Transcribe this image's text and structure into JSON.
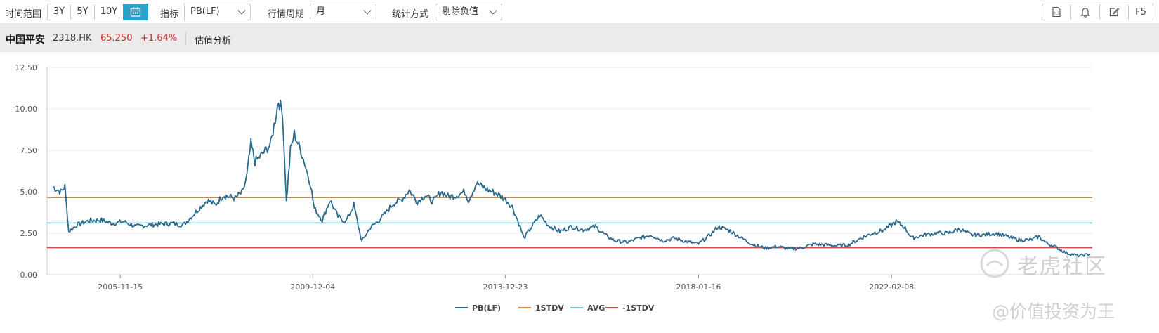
{
  "toolbar": {
    "time_range_label": "时间范围",
    "range_options": [
      "3Y",
      "5Y",
      "10Y"
    ],
    "indicator_label": "指标",
    "indicator_value": "PB(LF)",
    "period_label": "行情周期",
    "period_value": "月",
    "stat_label": "统计方式",
    "stat_value": "剔除负值",
    "icons": [
      "xls-export-icon",
      "bell-icon",
      "edit-icon"
    ],
    "refresh_label": "F5"
  },
  "quote": {
    "name": "中国平安",
    "code": "2318.HK",
    "price": "65.250",
    "change": "+1.64%",
    "tab": "估值分析"
  },
  "colors": {
    "series": "#2b6a8c",
    "plus1": "#e8832b",
    "avg": "#6fc3c8",
    "minus1": "#d94848",
    "accent": "#2aa3c8"
  },
  "chart_data": {
    "type": "line",
    "title": "",
    "xlabel": "",
    "ylabel": "",
    "ylim": [
      0,
      12.5
    ],
    "yticks": [
      "12.50",
      "10.00",
      "7.50",
      "5.00",
      "2.50",
      "0.00"
    ],
    "xticks": [
      "2005-11-15",
      "2009-12-04",
      "2013-12-23",
      "2018-01-16",
      "2022-02-08"
    ],
    "grid": "horizontal",
    "legend_position": "bottom",
    "series": [
      {
        "name": "PB(LF)",
        "kind": "line",
        "points": [
          [
            "2004-06",
            5.3
          ],
          [
            "2004-08",
            5.0
          ],
          [
            "2004-09",
            5.3
          ],
          [
            "2004-10",
            2.6
          ],
          [
            "2004-12",
            3.0
          ],
          [
            "2005-03",
            3.25
          ],
          [
            "2005-06",
            3.3
          ],
          [
            "2005-09",
            3.1
          ],
          [
            "2005-12",
            3.2
          ],
          [
            "2006-03",
            2.9
          ],
          [
            "2006-06",
            3.0
          ],
          [
            "2006-09",
            3.05
          ],
          [
            "2006-12",
            3.1
          ],
          [
            "2007-03",
            3.0
          ],
          [
            "2007-05",
            3.5
          ],
          [
            "2007-07",
            4.0
          ],
          [
            "2007-09",
            4.5
          ],
          [
            "2007-11",
            4.2
          ],
          [
            "2008-01",
            4.8
          ],
          [
            "2008-04",
            4.6
          ],
          [
            "2008-06",
            5.0
          ],
          [
            "2008-07",
            6.0
          ],
          [
            "2008-08",
            7.9
          ],
          [
            "2008-09",
            6.8
          ],
          [
            "2008-11",
            7.3
          ],
          [
            "2009-01",
            7.9
          ],
          [
            "2009-03",
            10.5
          ],
          [
            "2009-04",
            9.8
          ],
          [
            "2009-05",
            4.4
          ],
          [
            "2009-06",
            7.5
          ],
          [
            "2009-07",
            8.5
          ],
          [
            "2009-09",
            7.2
          ],
          [
            "2009-11",
            5.5
          ],
          [
            "2009-12",
            4.0
          ],
          [
            "2010-02",
            3.3
          ],
          [
            "2010-04",
            4.5
          ],
          [
            "2010-06",
            3.5
          ],
          [
            "2010-08",
            3.2
          ],
          [
            "2010-10",
            4.2
          ],
          [
            "2010-12",
            2.0
          ],
          [
            "2011-02",
            2.8
          ],
          [
            "2011-04",
            3.2
          ],
          [
            "2011-06",
            3.7
          ],
          [
            "2011-08",
            4.3
          ],
          [
            "2011-10",
            4.5
          ],
          [
            "2011-12",
            5.1
          ],
          [
            "2012-02",
            4.4
          ],
          [
            "2012-04",
            4.8
          ],
          [
            "2012-06",
            4.4
          ],
          [
            "2012-08",
            5.0
          ],
          [
            "2012-10",
            4.7
          ],
          [
            "2012-12",
            4.8
          ],
          [
            "2013-02",
            5.0
          ],
          [
            "2013-03",
            4.5
          ],
          [
            "2013-05",
            5.5
          ],
          [
            "2013-08",
            5.1
          ],
          [
            "2013-10",
            4.9
          ],
          [
            "2013-12",
            4.6
          ],
          [
            "2014-02",
            4.1
          ],
          [
            "2014-04",
            2.9
          ],
          [
            "2014-05",
            2.2
          ],
          [
            "2014-07",
            2.9
          ],
          [
            "2014-09",
            3.6
          ],
          [
            "2014-11",
            3.0
          ],
          [
            "2015-02",
            2.6
          ],
          [
            "2015-05",
            2.9
          ],
          [
            "2015-08",
            2.7
          ],
          [
            "2015-11",
            2.9
          ],
          [
            "2016-02",
            2.3
          ],
          [
            "2016-04",
            2.05
          ],
          [
            "2016-07",
            1.95
          ],
          [
            "2016-10",
            2.2
          ],
          [
            "2017-01",
            2.4
          ],
          [
            "2017-04",
            2.05
          ],
          [
            "2017-07",
            2.2
          ],
          [
            "2017-10",
            2.0
          ],
          [
            "2018-01",
            1.85
          ],
          [
            "2018-04",
            2.4
          ],
          [
            "2018-06",
            2.9
          ],
          [
            "2018-09",
            2.65
          ],
          [
            "2018-12",
            2.2
          ],
          [
            "2019-03",
            1.8
          ],
          [
            "2019-06",
            1.6
          ],
          [
            "2019-09",
            1.7
          ],
          [
            "2019-12",
            1.55
          ],
          [
            "2020-03",
            1.6
          ],
          [
            "2020-06",
            1.85
          ],
          [
            "2020-09",
            1.8
          ],
          [
            "2020-12",
            1.75
          ],
          [
            "2021-03",
            1.8
          ],
          [
            "2021-06",
            2.2
          ],
          [
            "2021-09",
            2.5
          ],
          [
            "2021-12",
            2.7
          ],
          [
            "2022-03",
            3.2
          ],
          [
            "2022-05",
            2.9
          ],
          [
            "2022-07",
            2.2
          ],
          [
            "2022-10",
            2.4
          ],
          [
            "2023-01",
            2.5
          ],
          [
            "2023-04",
            2.5
          ],
          [
            "2023-07",
            2.75
          ],
          [
            "2023-10",
            2.4
          ],
          [
            "2024-01",
            2.4
          ],
          [
            "2024-04",
            2.5
          ],
          [
            "2024-07",
            2.3
          ],
          [
            "2024-10",
            2.1
          ],
          [
            "2025-01",
            2.1
          ],
          [
            "2025-03",
            2.3
          ],
          [
            "2025-05",
            1.9
          ],
          [
            "2025-07",
            1.7
          ],
          [
            "2025-10",
            1.3
          ],
          [
            "2026-01",
            1.15
          ],
          [
            "2026-03",
            1.2
          ],
          [
            "2026-04",
            1.25
          ]
        ]
      },
      {
        "name": "1STDV",
        "kind": "hline",
        "value": 4.65
      },
      {
        "name": "AVG",
        "kind": "hline",
        "value": 3.12
      },
      {
        "name": "-1STDV",
        "kind": "hline",
        "value": 1.63
      }
    ]
  },
  "watermarks": [
    "老虎社区",
    "@价值投资为王"
  ]
}
